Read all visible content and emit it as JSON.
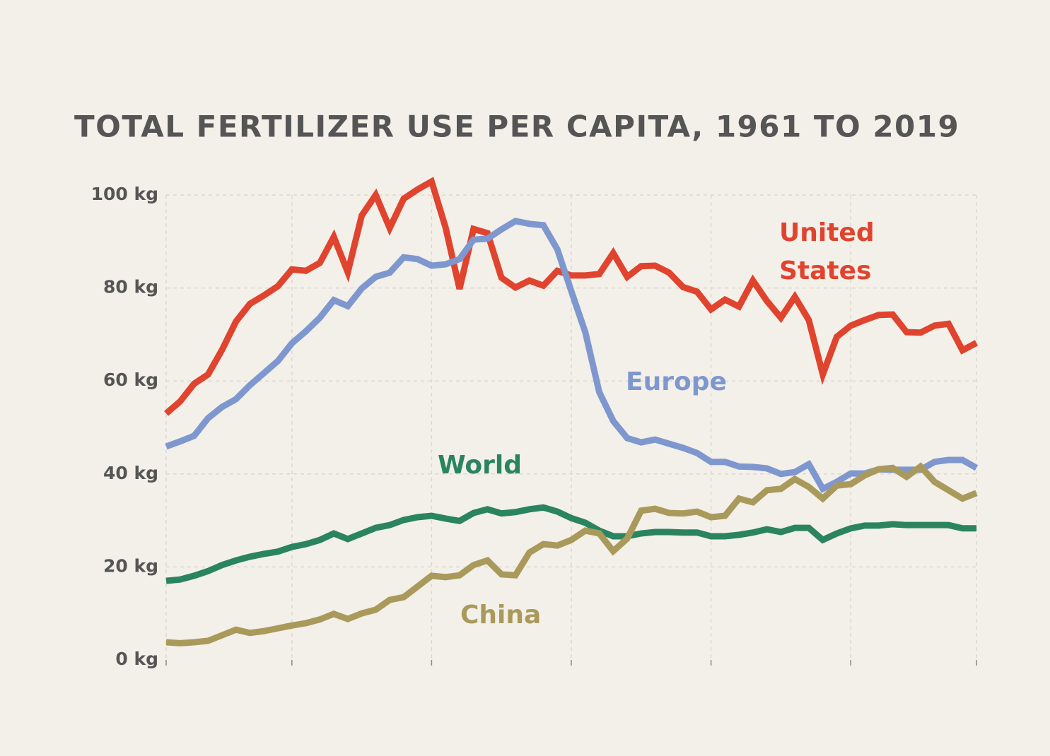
{
  "chart_data": {
    "type": "line",
    "title": "TOTAL FERTILIZER USE PER CAPITA, 1961 TO 2019",
    "x": [
      1961,
      1962,
      1963,
      1964,
      1965,
      1966,
      1967,
      1968,
      1969,
      1970,
      1971,
      1972,
      1973,
      1974,
      1975,
      1976,
      1977,
      1978,
      1979,
      1980,
      1981,
      1982,
      1983,
      1984,
      1985,
      1986,
      1987,
      1988,
      1989,
      1990,
      1991,
      1992,
      1993,
      1994,
      1995,
      1996,
      1997,
      1998,
      1999,
      2000,
      2001,
      2002,
      2003,
      2004,
      2005,
      2006,
      2007,
      2008,
      2009,
      2010,
      2011,
      2012,
      2013,
      2014,
      2015,
      2016,
      2017,
      2018,
      2019
    ],
    "xlim": [
      1961,
      2019
    ],
    "xticks": [
      1961,
      1970,
      1980,
      1990,
      2000,
      2010,
      2019
    ],
    "ylim": [
      0,
      100
    ],
    "yticks": [
      {
        "value": 0,
        "label": "0 kg"
      },
      {
        "value": 20,
        "label": "20 kg"
      },
      {
        "value": 40,
        "label": "40 kg"
      },
      {
        "value": 60,
        "label": "60 kg"
      },
      {
        "value": 80,
        "label": "80 kg"
      },
      {
        "value": 100,
        "label": "100 kg"
      }
    ],
    "grid": true,
    "series": [
      {
        "name": "United States",
        "color": "#e0432e",
        "values": [
          53,
          55.6,
          59.4,
          61.4,
          66.7,
          72.8,
          76.6,
          78.4,
          80.4,
          84.0,
          83.7,
          85.4,
          91.0,
          83.4,
          95.6,
          100,
          92.9,
          99.2,
          101.2,
          102.9,
          93.0,
          79.8,
          92.7,
          91.8,
          82.2,
          80.1,
          81.6,
          80.5,
          83.7,
          82.7,
          82.7,
          83.0,
          87.5,
          82.4,
          84.7,
          84.8,
          83.3,
          80.2,
          79.2,
          75.4,
          77.5,
          76.0,
          81.6,
          77.2,
          73.6,
          78.1,
          73.1,
          61.4,
          69.5,
          71.9,
          73.1,
          74.2,
          74.3,
          70.5,
          70.4,
          71.9,
          72.3,
          66.6,
          68.2
        ]
      },
      {
        "name": "Europe",
        "color": "#7f97cf",
        "values": [
          45.9,
          47.0,
          48.2,
          52.0,
          54.4,
          56.1,
          59.1,
          61.7,
          64.3,
          68.1,
          70.7,
          73.6,
          77.4,
          76.1,
          79.9,
          82.4,
          83.3,
          86.6,
          86.2,
          84.8,
          85.1,
          86.2,
          90.4,
          90.6,
          92.6,
          94.4,
          93.8,
          93.5,
          88.3,
          79.3,
          70.5,
          57.6,
          51.4,
          47.7,
          46.8,
          47.4,
          46.5,
          45.6,
          44.5,
          42.6,
          42.6,
          41.6,
          41.5,
          41.2,
          40.0,
          40.4,
          42.1,
          36.8,
          38.3,
          40.1,
          40.1,
          41.0,
          40.9,
          40.9,
          40.9,
          42.6,
          43.0,
          43.0,
          41.3
        ]
      },
      {
        "name": "World",
        "color": "#2a8460",
        "values": [
          17.0,
          17.3,
          18.1,
          19.1,
          20.4,
          21.4,
          22.2,
          22.8,
          23.3,
          24.3,
          24.9,
          25.8,
          27.2,
          26.0,
          27.2,
          28.4,
          29.0,
          30.1,
          30.7,
          31.0,
          30.4,
          29.9,
          31.6,
          32.4,
          31.5,
          31.8,
          32.4,
          32.8,
          31.9,
          30.5,
          29.5,
          27.8,
          26.6,
          26.6,
          27.2,
          27.5,
          27.5,
          27.4,
          27.4,
          26.6,
          26.6,
          26.9,
          27.4,
          28.1,
          27.5,
          28.4,
          28.4,
          25.8,
          27.2,
          28.3,
          28.9,
          28.9,
          29.2,
          29.0,
          29.0,
          29.0,
          29.0,
          28.3,
          28.3
        ]
      },
      {
        "name": "China",
        "color": "#a99a5c",
        "values": [
          3.8,
          3.6,
          3.8,
          4.1,
          5.3,
          6.5,
          5.8,
          6.2,
          6.8,
          7.4,
          7.9,
          8.7,
          9.9,
          8.8,
          10.0,
          10.8,
          12.9,
          13.5,
          15.8,
          18.1,
          17.8,
          18.2,
          20.4,
          21.4,
          18.4,
          18.2,
          23.1,
          24.9,
          24.6,
          25.8,
          27.8,
          27.2,
          23.4,
          26.1,
          32.1,
          32.5,
          31.6,
          31.5,
          31.9,
          30.7,
          31.0,
          34.7,
          33.9,
          36.5,
          36.8,
          38.9,
          37.2,
          34.7,
          37.5,
          37.8,
          39.7,
          41.0,
          41.3,
          39.4,
          41.6,
          38.3,
          36.5,
          34.7,
          35.9
        ]
      }
    ]
  }
}
